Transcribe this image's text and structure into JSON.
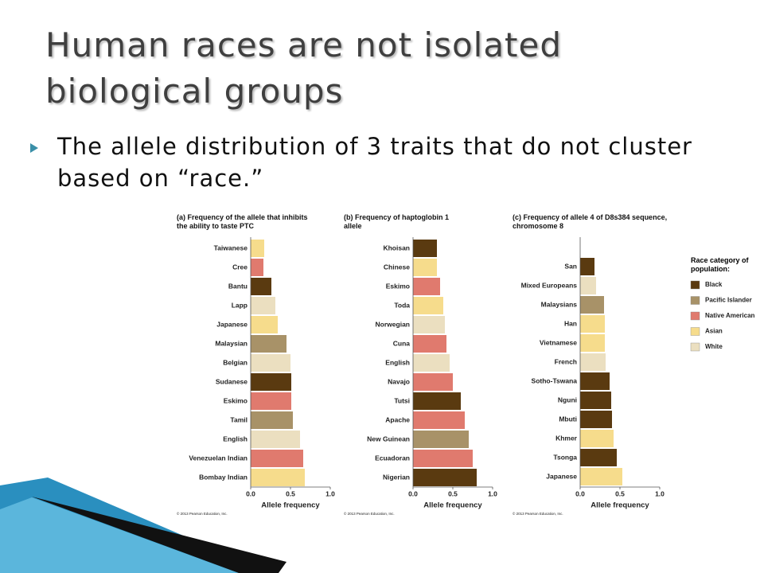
{
  "slide": {
    "title": "Human races are not isolated biological groups",
    "bullet": "The allele distribution of 3 traits that do not cluster based on “race.”"
  },
  "chart_data": [
    {
      "type": "hbar",
      "title": "(a) Frequency of the allele that inhibits the ability to taste PTC",
      "x_label": "Allele frequency",
      "credit": "© 2013 Pearson Education, Inc.",
      "categories": [
        "Taiwanese",
        "Cree",
        "Bantu",
        "Lapp",
        "Japanese",
        "Malaysian",
        "Belgian",
        "Sudanese",
        "Eskimo",
        "Tamil",
        "English",
        "Venezuelan Indian",
        "Bombay Indian"
      ],
      "values": [
        0.17,
        0.16,
        0.26,
        0.31,
        0.34,
        0.45,
        0.5,
        0.51,
        0.51,
        0.53,
        0.62,
        0.66,
        0.68
      ],
      "colors": [
        "#f6dc8c",
        "#e07a6e",
        "#5a3a10",
        "#ebdfc0",
        "#f6dc8c",
        "#a89268",
        "#ebdfc0",
        "#5a3a10",
        "#e07a6e",
        "#a89268",
        "#ebdfc0",
        "#e07a6e",
        "#f6dc8c"
      ],
      "xlim": [
        0,
        1
      ],
      "xticks": [
        {
          "value": 0,
          "label": "0.0"
        },
        0.5,
        {
          "value": 1,
          "label": "1.0"
        }
      ]
    },
    {
      "type": "hbar",
      "title": "(b) Frequency of haptoglobin 1 allele",
      "x_label": "Allele frequency",
      "credit": "© 2013 Pearson Education, Inc.",
      "categories": [
        "Khoisan",
        "Chinese",
        "Eskimo",
        "Toda",
        "Norwegian",
        "Cuna",
        "English",
        "Navajo",
        "Tutsi",
        "Apache",
        "New Guinean",
        "Ecuadoran",
        "Nigerian"
      ],
      "values": [
        0.3,
        0.3,
        0.34,
        0.38,
        0.4,
        0.42,
        0.46,
        0.5,
        0.6,
        0.65,
        0.7,
        0.75,
        0.8
      ],
      "colors": [
        "#5a3a10",
        "#f6dc8c",
        "#e07a6e",
        "#f6dc8c",
        "#ebdfc0",
        "#e07a6e",
        "#ebdfc0",
        "#e07a6e",
        "#5a3a10",
        "#e07a6e",
        "#a89268",
        "#e07a6e",
        "#5a3a10"
      ],
      "xlim": [
        0,
        1
      ],
      "xticks": [
        {
          "value": 0,
          "label": "0.0"
        },
        0.5,
        {
          "value": 1,
          "label": "1.0"
        }
      ]
    },
    {
      "type": "hbar",
      "title": "(c) Frequency of allele 4 of D8s384 sequence, chromosome 8",
      "x_label": "Allele frequency",
      "credit": "© 2013 Pearson Education, Inc.",
      "categories": [
        "San",
        "Mixed Europeans",
        "Malaysians",
        "Han",
        "Vietnamese",
        "French",
        "Sotho-Tswana",
        "Nguni",
        "Mbuti",
        "Khmer",
        "Tsonga",
        "Japanese"
      ],
      "values": [
        0.18,
        0.2,
        0.3,
        0.31,
        0.31,
        0.32,
        0.37,
        0.39,
        0.4,
        0.42,
        0.46,
        0.53
      ],
      "colors": [
        "#5a3a10",
        "#ebdfc0",
        "#a89268",
        "#f6dc8c",
        "#f6dc8c",
        "#ebdfc0",
        "#5a3a10",
        "#5a3a10",
        "#5a3a10",
        "#f6dc8c",
        "#5a3a10",
        "#f6dc8c"
      ],
      "xlim": [
        0,
        1
      ],
      "xticks": [
        {
          "value": 0,
          "label": "0.0"
        },
        0.5,
        {
          "value": 1,
          "label": "1.0"
        }
      ],
      "legend": {
        "title": "Race category of population:",
        "items": [
          {
            "name": "Black",
            "color": "#5a3a10"
          },
          {
            "name": "Pacific Islander",
            "color": "#a89268"
          },
          {
            "name": "Native American",
            "color": "#e07a6e"
          },
          {
            "name": "Asian",
            "color": "#f6dc8c"
          },
          {
            "name": "White",
            "color": "#ebdfc0"
          }
        ]
      }
    }
  ]
}
